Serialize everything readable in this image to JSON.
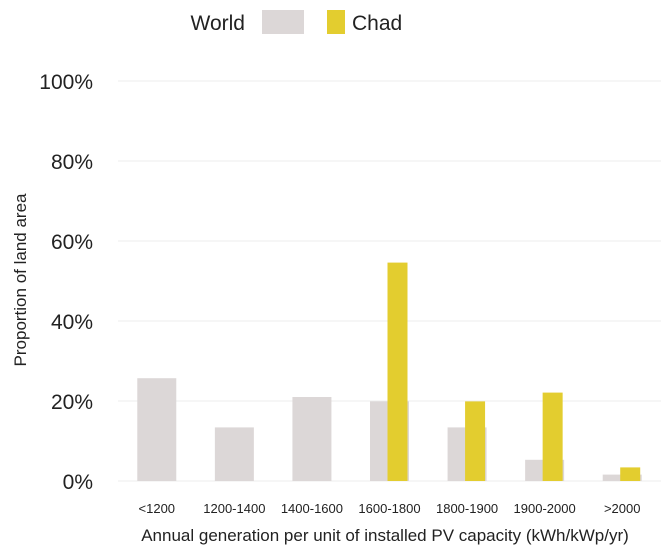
{
  "chart_data": {
    "type": "bar",
    "title": "",
    "xlabel": "Annual generation per unit of installed PV capacity (kWh/kWp/yr)",
    "ylabel": "Proportion of land area",
    "ylim": [
      0,
      100
    ],
    "ytick_labels": [
      "0%",
      "20%",
      "40%",
      "60%",
      "80%",
      "100%"
    ],
    "categories": [
      "<1200",
      "1200-1400",
      "1400-1600",
      "1600-1800",
      "1800-1900",
      "1900-2000",
      ">2000"
    ],
    "series": [
      {
        "name": "World",
        "color": "#dcd7d7",
        "values": [
          25.7,
          13.4,
          21.0,
          19.9,
          13.4,
          5.3,
          1.6
        ]
      },
      {
        "name": "Chad",
        "color": "#e3cd2f",
        "values": [
          0,
          0,
          0,
          54.6,
          19.9,
          22.1,
          3.4
        ]
      }
    ],
    "grid": true,
    "legend_position": "top"
  }
}
